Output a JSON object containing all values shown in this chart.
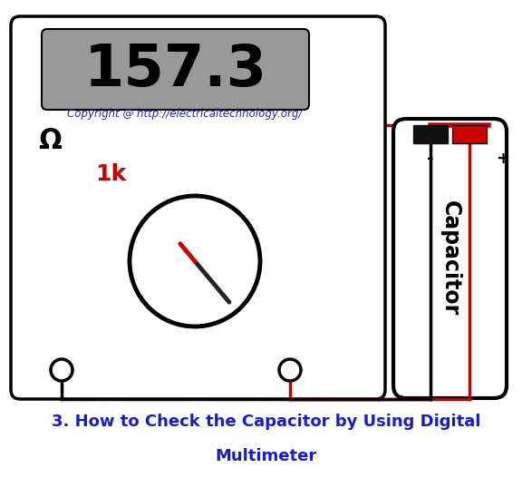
{
  "title_line1": "3. How to Check the Capacitor by Using Digital",
  "title_line2": "Multimeter",
  "display_value": "157.3",
  "copyright_text": "Copyright @ http://electricaltechnology.org/",
  "omega_label": "Ω",
  "knob_label": "1k",
  "capacitor_label": "Capacitor",
  "plus_label": "+",
  "minus_label": "-",
  "bg_color": "#ffffff",
  "meter_body_color": "#ffffff",
  "meter_border_color": "#000000",
  "display_bg_color": "#999999",
  "display_text_color": "#000000",
  "copyright_color": "#2222cc",
  "title_color": "#1a1acd",
  "knob_label_color": "#cc0000",
  "wire_red_color": "#cc0000",
  "wire_black_color": "#000000",
  "capacitor_body_color": "#ffffff",
  "red_terminal_color": "#cc0000",
  "black_terminal_color": "#111111"
}
